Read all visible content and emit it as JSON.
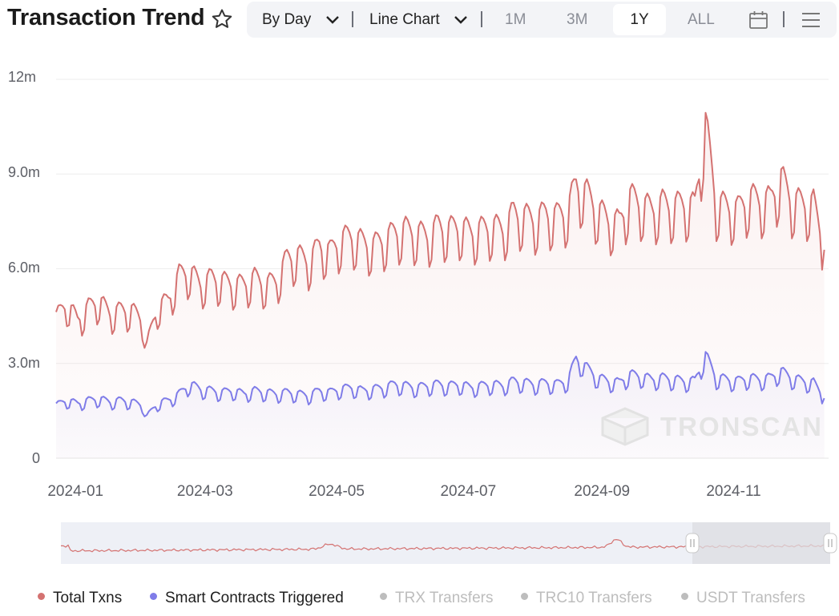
{
  "header": {
    "title": "Transaction Trend",
    "star_icon": "star-outline-icon"
  },
  "toolbar": {
    "by_day": "By Day",
    "line_chart": "Line Chart",
    "ranges": [
      "1M",
      "3M",
      "1Y",
      "ALL"
    ],
    "active_range": "1Y",
    "calendar_icon": "calendar-icon",
    "menu_icon": "hamburger-menu-icon",
    "chevron_icon": "chevron-down-icon"
  },
  "watermark": "TRONSCAN",
  "colors": {
    "total": "#d47271",
    "contracts": "#7f7ce8",
    "disabled": "#bdbdbd",
    "slider_bg": "#eef0f6",
    "slider_selected": "#dcdde1"
  },
  "legend": [
    {
      "label": "Total Txns",
      "color": "#d47271",
      "active": true
    },
    {
      "label": "Smart Contracts Triggered",
      "color": "#7f7ce8",
      "active": true
    },
    {
      "label": "TRX Transfers",
      "color": "#bdbdbd",
      "active": false
    },
    {
      "label": "TRC10 Transfers",
      "color": "#bdbdbd",
      "active": false
    },
    {
      "label": "USDT Transfers",
      "color": "#bdbdbd",
      "active": false
    }
  ],
  "chart_data": {
    "type": "line",
    "x_type": "date",
    "x_range": [
      "2023-12-23",
      "2024-12-15"
    ],
    "x_ticks": [
      "2024-01",
      "2024-03",
      "2024-05",
      "2024-07",
      "2024-09",
      "2024-11"
    ],
    "y_ticks": [
      "12m",
      "9.0m",
      "6.0m",
      "3.0m",
      "0"
    ],
    "ylim": [
      0,
      12000000
    ],
    "grid": true,
    "series": [
      {
        "name": "Total Txns",
        "area_fill": true,
        "points": [
          [
            "2023-12-23",
            4400000
          ],
          [
            "2023-12-28",
            4800000
          ],
          [
            "2024-01-02",
            4300000
          ],
          [
            "2024-01-07",
            4700000
          ],
          [
            "2024-01-12",
            4900000
          ],
          [
            "2024-01-17",
            4500000
          ],
          [
            "2024-01-22",
            4600000
          ],
          [
            "2024-01-27",
            4600000
          ],
          [
            "2024-02-01",
            4300000
          ],
          [
            "2024-02-03",
            3500000
          ],
          [
            "2024-02-08",
            4700000
          ],
          [
            "2024-02-13",
            4900000
          ],
          [
            "2024-02-18",
            5700000
          ],
          [
            "2024-02-23",
            5800000
          ],
          [
            "2024-02-28",
            5400000
          ],
          [
            "2024-03-04",
            5600000
          ],
          [
            "2024-03-09",
            5500000
          ],
          [
            "2024-03-14",
            5400000
          ],
          [
            "2024-03-19",
            5400000
          ],
          [
            "2024-03-24",
            5600000
          ],
          [
            "2024-03-29",
            5400000
          ],
          [
            "2024-04-03",
            5500000
          ],
          [
            "2024-04-08",
            6200000
          ],
          [
            "2024-04-13",
            6300000
          ],
          [
            "2024-04-18",
            6100000
          ],
          [
            "2024-04-23",
            6600000
          ],
          [
            "2024-04-28",
            6400000
          ],
          [
            "2024-05-03",
            6800000
          ],
          [
            "2024-05-08",
            6900000
          ],
          [
            "2024-05-13",
            6700000
          ],
          [
            "2024-05-18",
            6600000
          ],
          [
            "2024-05-23",
            6800000
          ],
          [
            "2024-05-28",
            7000000
          ],
          [
            "2024-06-02",
            7100000
          ],
          [
            "2024-06-07",
            7000000
          ],
          [
            "2024-06-12",
            6900000
          ],
          [
            "2024-06-17",
            7200000
          ],
          [
            "2024-06-22",
            7100000
          ],
          [
            "2024-06-27",
            7200000
          ],
          [
            "2024-07-02",
            7000000
          ],
          [
            "2024-07-07",
            7100000
          ],
          [
            "2024-07-12",
            7200000
          ],
          [
            "2024-07-17",
            7100000
          ],
          [
            "2024-07-22",
            7600000
          ],
          [
            "2024-07-27",
            7500000
          ],
          [
            "2024-08-01",
            7400000
          ],
          [
            "2024-08-06",
            7600000
          ],
          [
            "2024-08-11",
            7500000
          ],
          [
            "2024-08-16",
            7700000
          ],
          [
            "2024-08-20",
            8500000
          ],
          [
            "2024-08-25",
            8200000
          ],
          [
            "2024-08-30",
            7700000
          ],
          [
            "2024-09-04",
            7400000
          ],
          [
            "2024-09-09",
            7300000
          ],
          [
            "2024-09-14",
            8100000
          ],
          [
            "2024-09-19",
            7900000
          ],
          [
            "2024-09-24",
            7700000
          ],
          [
            "2024-09-29",
            7900000
          ],
          [
            "2024-10-04",
            7800000
          ],
          [
            "2024-10-09",
            7900000
          ],
          [
            "2024-10-14",
            7800000
          ],
          [
            "2024-10-19",
            10400000
          ],
          [
            "2024-10-24",
            7900000
          ],
          [
            "2024-10-29",
            7800000
          ],
          [
            "2024-11-03",
            7700000
          ],
          [
            "2024-11-08",
            8100000
          ],
          [
            "2024-11-13",
            8000000
          ],
          [
            "2024-11-18",
            8000000
          ],
          [
            "2024-11-23",
            8700000
          ],
          [
            "2024-11-28",
            8000000
          ],
          [
            "2024-12-03",
            7900000
          ],
          [
            "2024-12-08",
            7900000
          ],
          [
            "2024-12-13",
            6600000
          ]
        ]
      },
      {
        "name": "Smart Contracts Triggered",
        "area_fill": true,
        "points": [
          [
            "2023-12-23",
            1650000
          ],
          [
            "2023-12-28",
            1800000
          ],
          [
            "2024-01-02",
            1700000
          ],
          [
            "2024-01-07",
            1800000
          ],
          [
            "2024-01-12",
            1850000
          ],
          [
            "2024-01-17",
            1750000
          ],
          [
            "2024-01-22",
            1800000
          ],
          [
            "2024-01-27",
            1750000
          ],
          [
            "2024-02-01",
            1650000
          ],
          [
            "2024-02-03",
            1300000
          ],
          [
            "2024-02-08",
            1700000
          ],
          [
            "2024-02-13",
            1800000
          ],
          [
            "2024-02-18",
            2000000
          ],
          [
            "2024-02-23",
            2300000
          ],
          [
            "2024-02-28",
            2150000
          ],
          [
            "2024-03-04",
            2100000
          ],
          [
            "2024-03-09",
            2050000
          ],
          [
            "2024-03-14",
            2100000
          ],
          [
            "2024-03-19",
            2000000
          ],
          [
            "2024-03-24",
            2100000
          ],
          [
            "2024-03-29",
            2050000
          ],
          [
            "2024-04-03",
            2000000
          ],
          [
            "2024-04-08",
            2050000
          ],
          [
            "2024-04-13",
            2000000
          ],
          [
            "2024-04-18",
            1950000
          ],
          [
            "2024-04-23",
            2100000
          ],
          [
            "2024-04-28",
            2050000
          ],
          [
            "2024-05-03",
            2150000
          ],
          [
            "2024-05-08",
            2200000
          ],
          [
            "2024-05-13",
            2100000
          ],
          [
            "2024-05-18",
            2150000
          ],
          [
            "2024-05-23",
            2200000
          ],
          [
            "2024-05-28",
            2300000
          ],
          [
            "2024-06-02",
            2250000
          ],
          [
            "2024-06-07",
            2200000
          ],
          [
            "2024-06-12",
            2250000
          ],
          [
            "2024-06-17",
            2300000
          ],
          [
            "2024-06-22",
            2250000
          ],
          [
            "2024-06-27",
            2300000
          ],
          [
            "2024-07-02",
            2200000
          ],
          [
            "2024-07-07",
            2250000
          ],
          [
            "2024-07-12",
            2300000
          ],
          [
            "2024-07-17",
            2250000
          ],
          [
            "2024-07-22",
            2400000
          ],
          [
            "2024-07-27",
            2350000
          ],
          [
            "2024-08-01",
            2300000
          ],
          [
            "2024-08-06",
            2350000
          ],
          [
            "2024-08-11",
            2300000
          ],
          [
            "2024-08-16",
            2400000
          ],
          [
            "2024-08-20",
            3100000
          ],
          [
            "2024-08-25",
            2800000
          ],
          [
            "2024-08-30",
            2500000
          ],
          [
            "2024-09-04",
            2400000
          ],
          [
            "2024-09-09",
            2350000
          ],
          [
            "2024-09-14",
            2600000
          ],
          [
            "2024-09-19",
            2550000
          ],
          [
            "2024-09-24",
            2450000
          ],
          [
            "2024-09-29",
            2500000
          ],
          [
            "2024-10-04",
            2450000
          ],
          [
            "2024-10-09",
            2400000
          ],
          [
            "2024-10-14",
            2400000
          ],
          [
            "2024-10-19",
            3200000
          ],
          [
            "2024-10-24",
            2500000
          ],
          [
            "2024-10-29",
            2450000
          ],
          [
            "2024-11-03",
            2400000
          ],
          [
            "2024-11-08",
            2500000
          ],
          [
            "2024-11-13",
            2450000
          ],
          [
            "2024-11-18",
            2500000
          ],
          [
            "2024-11-23",
            2700000
          ],
          [
            "2024-11-28",
            2500000
          ],
          [
            "2024-12-03",
            2400000
          ],
          [
            "2024-12-08",
            2350000
          ],
          [
            "2024-12-13",
            1900000
          ]
        ]
      }
    ]
  }
}
